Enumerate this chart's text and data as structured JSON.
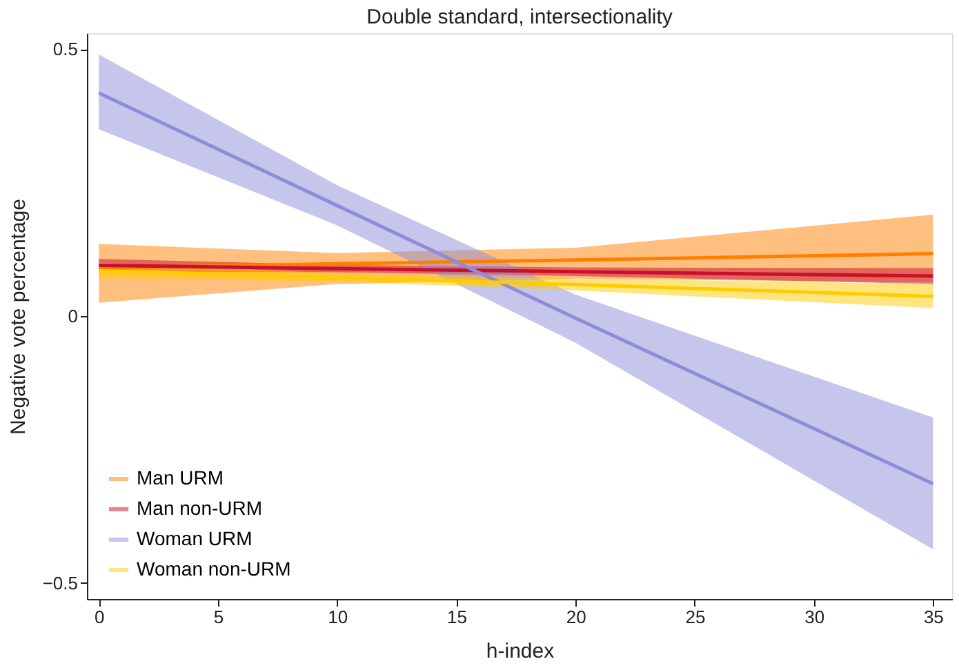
{
  "chart_data": {
    "type": "line",
    "title": "Double standard, intersectionality",
    "xlabel": "h-index",
    "ylabel": "Negative vote percentage",
    "xlim": [
      -0.5,
      35.8
    ],
    "ylim": [
      -0.53,
      0.53
    ],
    "xticks": [
      0,
      5,
      10,
      15,
      20,
      25,
      30,
      35
    ],
    "yticks": [
      {
        "value": -0.5,
        "label": "−0.5"
      },
      0,
      0.5
    ],
    "grid": false,
    "legend": "bottom left",
    "marker": "none",
    "line_style": "solid",
    "series": [
      {
        "name": "Man URM",
        "color": "#ff7f00",
        "x": [
          0,
          10,
          20,
          35
        ],
        "values": [
          0.09,
          0.098,
          0.105,
          0.117
        ],
        "lower": [
          0.025,
          0.06,
          0.07,
          0.063
        ],
        "upper": [
          0.135,
          0.118,
          0.128,
          0.19
        ]
      },
      {
        "name": "Man non-URM",
        "color": "#c8102e",
        "x": [
          0,
          10,
          20,
          35
        ],
        "values": [
          0.095,
          0.089,
          0.083,
          0.075
        ],
        "lower": [
          0.083,
          0.082,
          0.075,
          0.06
        ],
        "upper": [
          0.107,
          0.096,
          0.091,
          0.09
        ]
      },
      {
        "name": "Woman URM",
        "color": "#8e8cd8",
        "x": [
          0,
          10,
          20,
          35
        ],
        "values": [
          0.418,
          0.207,
          -0.004,
          -0.314
        ],
        "lower": [
          0.35,
          0.17,
          -0.05,
          -0.437
        ],
        "upper": [
          0.49,
          0.245,
          0.04,
          -0.19
        ]
      },
      {
        "name": "Woman non-URM",
        "color": "#ffcc00",
        "x": [
          0,
          10,
          20,
          35
        ],
        "values": [
          0.085,
          0.072,
          0.059,
          0.037
        ],
        "lower": [
          0.07,
          0.065,
          0.048,
          0.015
        ],
        "upper": [
          0.1,
          0.08,
          0.07,
          0.06
        ]
      }
    ]
  }
}
